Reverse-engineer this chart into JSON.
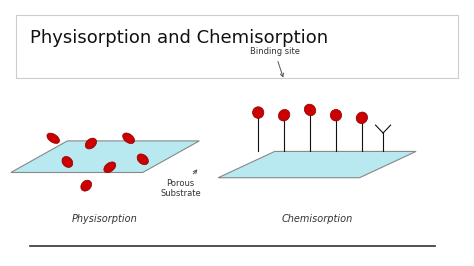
{
  "title": "Physisorption and Chemisorption",
  "title_fontsize": 13,
  "title_box_color": "#ffffff",
  "title_box_edge": "#cccccc",
  "bg_color": "#ffffff",
  "substrate_color": "#b8e8f0",
  "substrate_edge": "#888888",
  "molecule_color": "#cc0000",
  "molecule_edge": "#880000",
  "stem_color": "#111111",
  "label_physi": "Physisorption",
  "label_chemi": "Chemisorption",
  "label_porous": "Porous\nSubstrate",
  "label_binding": "Binding site",
  "label_fontsize": 7,
  "annotation_fontsize": 6
}
